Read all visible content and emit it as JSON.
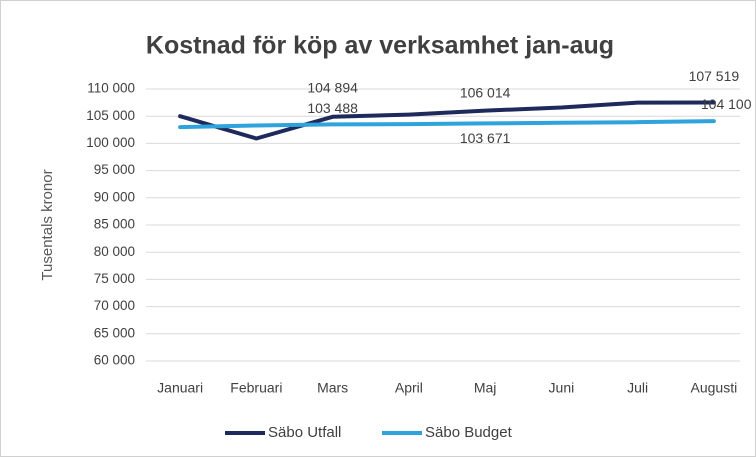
{
  "chart_data": {
    "type": "line",
    "title": "Kostnad för köp av verksamhet jan-aug",
    "y_label": "Tusentals kronor",
    "categories": [
      "Januari",
      "Februari",
      "Mars",
      "April",
      "Maj",
      "Juni",
      "Juli",
      "Augusti"
    ],
    "series": [
      {
        "name": "Säbo Utfall",
        "color": "#1f2a5c",
        "values": [
          105000,
          100900,
          104894,
          105300,
          106014,
          106600,
          107500,
          107519
        ],
        "value_labels": [
          null,
          null,
          "104 894",
          null,
          "106 014",
          null,
          null,
          "107 519"
        ]
      },
      {
        "name": "Säbo Budget",
        "color": "#2ea3dc",
        "values": [
          103000,
          103300,
          103488,
          103550,
          103671,
          103800,
          103900,
          104100
        ],
        "value_labels": [
          null,
          null,
          "103 488",
          null,
          "103 671",
          null,
          null,
          "104 100"
        ]
      }
    ],
    "ylim": [
      60000,
      110000
    ],
    "yticks": [
      {
        "value": 60000,
        "label": "60 000"
      },
      {
        "value": 65000,
        "label": "65 000"
      },
      {
        "value": 70000,
        "label": "70 000"
      },
      {
        "value": 75000,
        "label": "75 000"
      },
      {
        "value": 80000,
        "label": "80 000"
      },
      {
        "value": 85000,
        "label": "85 000"
      },
      {
        "value": 90000,
        "label": "90 000"
      },
      {
        "value": 95000,
        "label": "95 000"
      },
      {
        "value": 100000,
        "label": "100 000"
      },
      {
        "value": 105000,
        "label": "105 000"
      },
      {
        "value": 110000,
        "label": "110 000"
      }
    ],
    "grid": true,
    "legend": "bottom"
  }
}
